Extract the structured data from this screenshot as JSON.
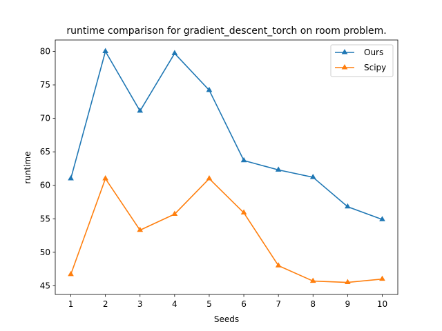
{
  "chart_data": {
    "type": "line",
    "title": "runtime comparison for gradient_descent_torch on room problem.",
    "xlabel": "Seeds",
    "ylabel": "runtime",
    "x": [
      1,
      2,
      3,
      4,
      5,
      6,
      7,
      8,
      9,
      10
    ],
    "xlim": [
      0.55,
      10.45
    ],
    "ylim": [
      43.7,
      81.7
    ],
    "xticks": [
      1,
      2,
      3,
      4,
      5,
      6,
      7,
      8,
      9,
      10
    ],
    "yticks": [
      45,
      50,
      55,
      60,
      65,
      70,
      75,
      80
    ],
    "grid": false,
    "legend_position": "top-right",
    "series": [
      {
        "name": "Ours",
        "color": "#1f77b4",
        "marker": "triangle",
        "values": [
          61.0,
          80.0,
          71.1,
          79.7,
          74.2,
          63.7,
          62.3,
          61.2,
          56.8,
          54.9
        ]
      },
      {
        "name": "Scipy",
        "color": "#ff7f0e",
        "marker": "triangle",
        "values": [
          46.7,
          61.0,
          53.3,
          55.7,
          61.0,
          55.9,
          48.0,
          45.7,
          45.5,
          46.0
        ]
      }
    ]
  }
}
